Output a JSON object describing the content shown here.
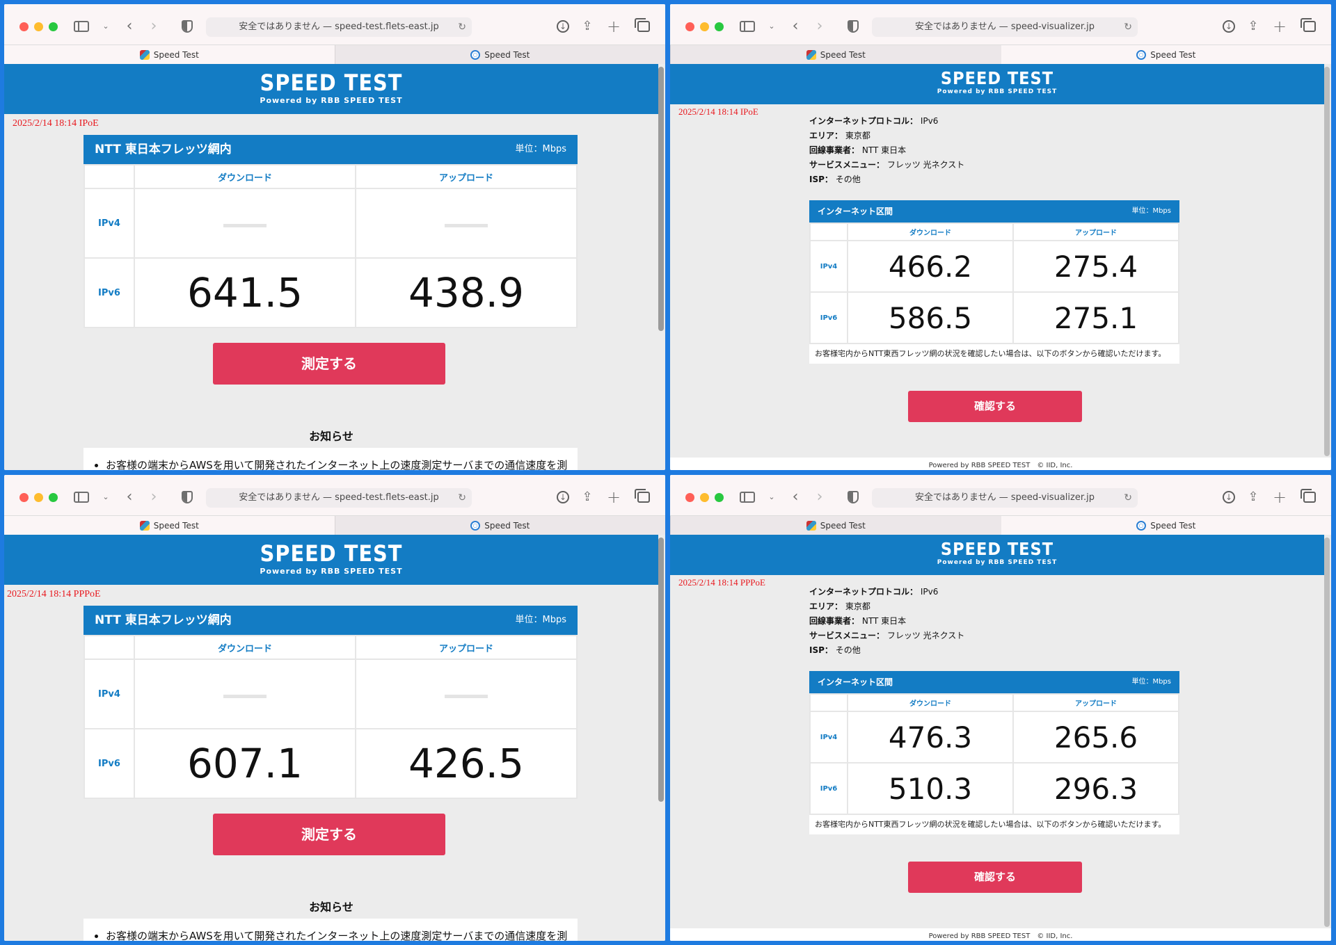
{
  "windows": [
    {
      "id": "w1",
      "url": "安全ではありません — speed-test.flets-east.jp",
      "tabs": [
        {
          "label": "Speed Test",
          "active": true,
          "favicon": "cube-icon"
        },
        {
          "label": "Speed Test",
          "active": false,
          "favicon": "globe-icon"
        }
      ],
      "banner": {
        "title": "SPEED TEST",
        "subtitle": "Powered by RBB SPEED TEST"
      },
      "stamp": "2025/2/14 18:14 IPoE",
      "card": {
        "title": "NTT 東日本フレッツ網内",
        "unit": "単位：Mbps",
        "col_download": "ダウンロード",
        "col_upload": "アップロード",
        "rows": [
          {
            "label": "IPv4",
            "download": "",
            "upload": ""
          },
          {
            "label": "IPv6",
            "download": "641.5",
            "upload": "438.9"
          }
        ]
      },
      "measure_button": "測定する",
      "notice_title": "お知らせ",
      "notice_text": "お客様の端末からAWSを用いて開発されたインターネット上の速度測定サーバまでの通信速度を測"
    },
    {
      "id": "w2",
      "url": "安全ではありません — speed-visualizer.jp",
      "tabs": [
        {
          "label": "Speed Test",
          "active": false,
          "favicon": "cube-icon"
        },
        {
          "label": "Speed Test",
          "active": true,
          "favicon": "globe-icon"
        }
      ],
      "banner": {
        "title": "SPEED TEST",
        "subtitle": "Powered by RBB SPEED TEST"
      },
      "stamp": "2025/2/14 18:14 IPoE",
      "info": [
        {
          "k": "インターネットプロトコル：",
          "v": "IPv6"
        },
        {
          "k": "エリア：",
          "v": "東京都"
        },
        {
          "k": "回線事業者：",
          "v": "NTT 東日本"
        },
        {
          "k": "サービスメニュー：",
          "v": "フレッツ 光ネクスト"
        },
        {
          "k": "ISP：",
          "v": "その他"
        }
      ],
      "card": {
        "title": "インターネット区間",
        "unit": "単位：Mbps",
        "col_download": "ダウンロード",
        "col_upload": "アップロード",
        "rows": [
          {
            "label": "IPv4",
            "download": "466.2",
            "upload": "275.4"
          },
          {
            "label": "IPv6",
            "download": "586.5",
            "upload": "275.1"
          }
        ],
        "note": "お客様宅内からNTT東西フレッツ網の状況を確認したい場合は、以下のボタンから確認いただけます。"
      },
      "confirm_button": "確認する",
      "footer": "Powered by RBB SPEED TEST　© IID, Inc."
    },
    {
      "id": "w3",
      "url": "安全ではありません — speed-test.flets-east.jp",
      "tabs": [
        {
          "label": "Speed Test",
          "active": true,
          "favicon": "cube-icon"
        },
        {
          "label": "Speed Test",
          "active": false,
          "favicon": "globe-icon"
        }
      ],
      "banner": {
        "title": "SPEED TEST",
        "subtitle": "Powered by RBB SPEED TEST"
      },
      "stamp": "2025/2/14 18:14 PPPoE",
      "card": {
        "title": "NTT 東日本フレッツ網内",
        "unit": "単位：Mbps",
        "col_download": "ダウンロード",
        "col_upload": "アップロード",
        "rows": [
          {
            "label": "IPv4",
            "download": "",
            "upload": ""
          },
          {
            "label": "IPv6",
            "download": "607.1",
            "upload": "426.5"
          }
        ]
      },
      "measure_button": "測定する",
      "notice_title": "お知らせ",
      "notice_text": "お客様の端末からAWSを用いて開発されたインターネット上の速度測定サーバまでの通信速度を測"
    },
    {
      "id": "w4",
      "url": "安全ではありません — speed-visualizer.jp",
      "tabs": [
        {
          "label": "Speed Test",
          "active": false,
          "favicon": "cube-icon"
        },
        {
          "label": "Speed Test",
          "active": true,
          "favicon": "globe-icon"
        }
      ],
      "banner": {
        "title": "SPEED TEST",
        "subtitle": "Powered by RBB SPEED TEST"
      },
      "stamp": "2025/2/14 18:14 PPPoE",
      "info": [
        {
          "k": "インターネットプロトコル：",
          "v": "IPv6"
        },
        {
          "k": "エリア：",
          "v": "東京都"
        },
        {
          "k": "回線事業者：",
          "v": "NTT 東日本"
        },
        {
          "k": "サービスメニュー：",
          "v": "フレッツ 光ネクスト"
        },
        {
          "k": "ISP：",
          "v": "その他"
        }
      ],
      "card": {
        "title": "インターネット区間",
        "unit": "単位：Mbps",
        "col_download": "ダウンロード",
        "col_upload": "アップロード",
        "rows": [
          {
            "label": "IPv4",
            "download": "476.3",
            "upload": "265.6"
          },
          {
            "label": "IPv6",
            "download": "510.3",
            "upload": "296.3"
          }
        ],
        "note": "お客様宅内からNTT東西フレッツ網の状況を確認したい場合は、以下のボタンから確認いただけます。"
      },
      "confirm_button": "確認する",
      "footer": "Powered by RBB SPEED TEST　© IID, Inc."
    }
  ],
  "colors": {
    "banner": "#137cc4",
    "button": "#e0395a",
    "stamp": "#e8181e",
    "frame": "#1e7be0"
  }
}
